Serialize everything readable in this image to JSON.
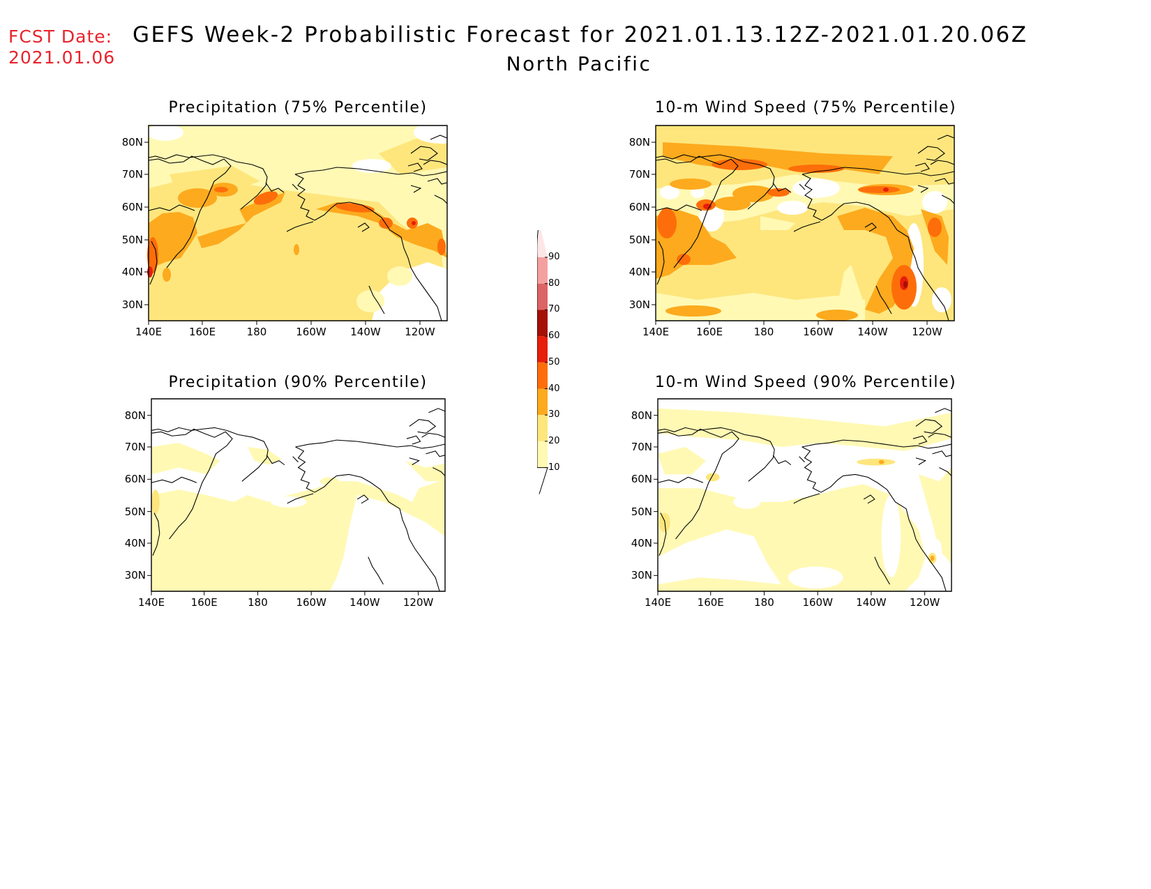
{
  "header": {
    "fcst_label": "FCST Date:",
    "fcst_date": "2021.01.06",
    "title": "GEFS Week-2 Probabilistic Forecast for 2021.01.13.12Z-2021.01.20.06Z",
    "subtitle": "North Pacific"
  },
  "panels": [
    {
      "id": "precip75",
      "title": "Precipitation (75% Percentile)"
    },
    {
      "id": "wind75",
      "title": "10-m Wind Speed (75% Percentile)"
    },
    {
      "id": "precip90",
      "title": "Precipitation (90% Percentile)"
    },
    {
      "id": "wind90",
      "title": "10-m Wind Speed (90% Percentile)"
    }
  ],
  "axes": {
    "lat_labels": [
      "80N",
      "70N",
      "60N",
      "50N",
      "40N",
      "30N"
    ],
    "lon_labels": [
      "140E",
      "160E",
      "180",
      "160W",
      "140W",
      "120W"
    ]
  },
  "colorbar": {
    "levels": [
      "10",
      "20",
      "30",
      "40",
      "50",
      "60",
      "70",
      "80",
      "90"
    ],
    "colors": [
      "#fff9b4",
      "#fee67d",
      "#fdaa1e",
      "#fd6e0a",
      "#e61e0a",
      "#a50f06",
      "#dc6464",
      "#f5a0a0",
      "#fde6e6"
    ]
  },
  "palette": {
    "fcst_color": "#e8242c",
    "coast": "#000000"
  }
}
